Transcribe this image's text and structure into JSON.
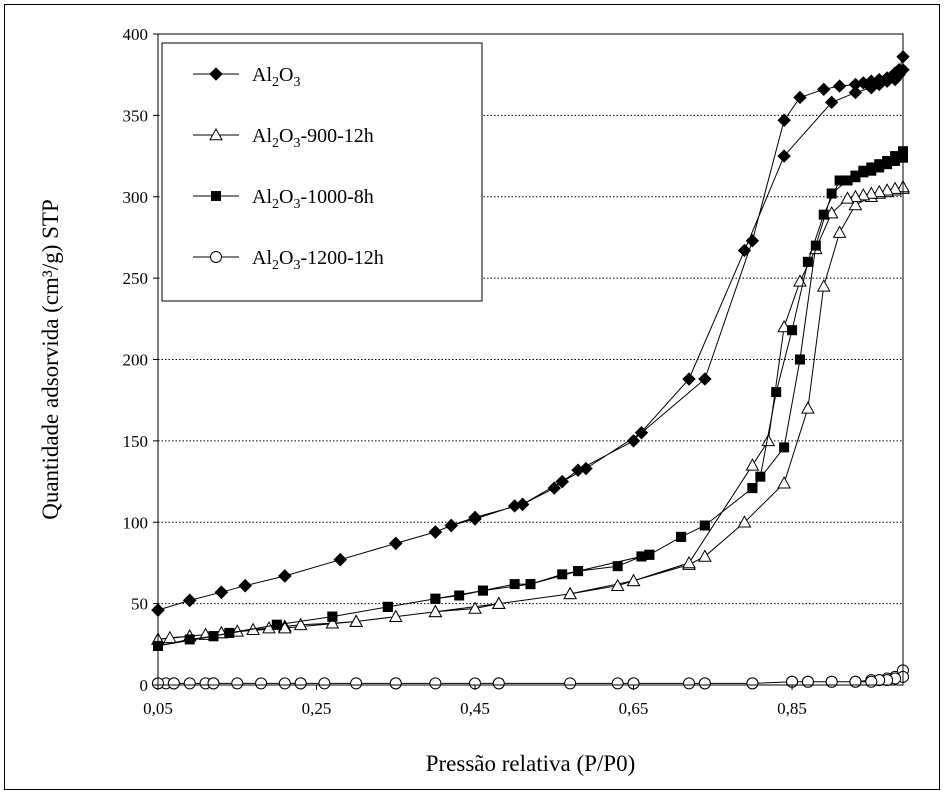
{
  "chart_data": {
    "type": "line",
    "xlabel": "Pressão relativa (P/P0)",
    "ylabel": "Quantidade adsorvida (cm³/g) STP",
    "xlim": [
      0.05,
      0.99
    ],
    "ylim": [
      0,
      400
    ],
    "xticks": [
      "0,05",
      "0,25",
      "0,45",
      "0,65",
      "0,85"
    ],
    "yticks": [
      "0",
      "50",
      "100",
      "150",
      "200",
      "250",
      "300",
      "350",
      "400"
    ],
    "grid": "horizontal dotted",
    "legend_position": "top-left",
    "series": [
      {
        "name": "Al2O3",
        "marker": "diamond-filled",
        "x": [
          0.05,
          0.09,
          0.13,
          0.16,
          0.21,
          0.28,
          0.35,
          0.4,
          0.42,
          0.45,
          0.5,
          0.51,
          0.55,
          0.56,
          0.58,
          0.65,
          0.72,
          0.79,
          0.84,
          0.9,
          0.93,
          0.95,
          0.96,
          0.97,
          0.98,
          0.985,
          0.99,
          0.99,
          0.985,
          0.98,
          0.97,
          0.96,
          0.95,
          0.94,
          0.93,
          0.91,
          0.89,
          0.86,
          0.84,
          0.8,
          0.74,
          0.66,
          0.59,
          0.56,
          0.51,
          0.45,
          0.42,
          0.4,
          0.35,
          0.28,
          0.21,
          0.16,
          0.13,
          0.09,
          0.05
        ],
        "y": [
          46,
          52,
          57,
          61,
          67,
          77,
          87,
          94,
          98,
          102,
          110,
          111,
          121,
          125,
          132,
          150,
          188,
          267,
          325,
          358,
          364,
          367,
          369,
          371,
          372,
          375,
          378,
          386,
          378,
          376,
          373,
          372,
          371,
          370,
          369,
          368,
          366,
          361,
          347,
          273,
          188,
          155,
          133,
          125,
          111,
          103,
          98,
          94,
          87,
          77,
          67,
          61,
          57,
          52,
          46
        ]
      },
      {
        "name": "Al2O3-900-12h",
        "marker": "triangle-open",
        "x": [
          0.05,
          0.065,
          0.09,
          0.11,
          0.13,
          0.15,
          0.17,
          0.19,
          0.21,
          0.23,
          0.27,
          0.3,
          0.35,
          0.4,
          0.45,
          0.48,
          0.57,
          0.63,
          0.65,
          0.72,
          0.74,
          0.79,
          0.84,
          0.87,
          0.89,
          0.91,
          0.93,
          0.95,
          0.96,
          0.97,
          0.98,
          0.99,
          0.99,
          0.98,
          0.97,
          0.96,
          0.95,
          0.94,
          0.93,
          0.92,
          0.9,
          0.88,
          0.86,
          0.84,
          0.82,
          0.8,
          0.72,
          0.65,
          0.57,
          0.48,
          0.4,
          0.3,
          0.21,
          0.13,
          0.09,
          0.05
        ],
        "y": [
          28,
          29,
          30,
          31,
          32,
          33,
          34,
          35,
          36,
          37,
          38,
          39,
          42,
          45,
          47,
          50,
          56,
          61,
          64,
          74,
          79,
          100,
          124,
          170,
          245,
          278,
          295,
          300,
          302,
          303,
          304,
          305,
          306,
          305,
          304,
          303,
          302,
          301,
          300,
          299,
          290,
          268,
          248,
          220,
          150,
          135,
          75,
          64,
          56,
          50,
          45,
          39,
          35,
          32,
          30,
          28
        ]
      },
      {
        "name": "Al2O3-1000-8h",
        "marker": "square-filled",
        "x": [
          0.05,
          0.09,
          0.12,
          0.14,
          0.2,
          0.27,
          0.34,
          0.4,
          0.43,
          0.46,
          0.5,
          0.52,
          0.56,
          0.58,
          0.63,
          0.66,
          0.67,
          0.71,
          0.74,
          0.8,
          0.84,
          0.86,
          0.88,
          0.9,
          0.92,
          0.93,
          0.94,
          0.95,
          0.96,
          0.97,
          0.98,
          0.99,
          0.99,
          0.98,
          0.97,
          0.96,
          0.95,
          0.94,
          0.93,
          0.92,
          0.91,
          0.89,
          0.87,
          0.85,
          0.83,
          0.81,
          0.8,
          0.74,
          0.71,
          0.67,
          0.66,
          0.58,
          0.52,
          0.46,
          0.4,
          0.34,
          0.27,
          0.2,
          0.12,
          0.05
        ],
        "y": [
          24,
          28,
          30,
          32,
          37,
          42,
          48,
          53,
          55,
          58,
          62,
          62,
          68,
          70,
          73,
          79,
          80,
          91,
          98,
          121,
          146,
          200,
          270,
          302,
          310,
          312,
          315,
          316,
          318,
          320,
          322,
          324,
          328,
          325,
          322,
          320,
          318,
          316,
          313,
          310,
          310,
          289,
          260,
          218,
          180,
          128,
          121,
          98,
          91,
          80,
          79,
          70,
          62,
          58,
          53,
          48,
          42,
          37,
          30,
          24
        ]
      },
      {
        "name": "Al2O3-1200-12h",
        "marker": "circle-open",
        "x": [
          0.05,
          0.06,
          0.07,
          0.09,
          0.11,
          0.12,
          0.15,
          0.18,
          0.21,
          0.23,
          0.26,
          0.3,
          0.35,
          0.4,
          0.45,
          0.48,
          0.57,
          0.63,
          0.65,
          0.72,
          0.74,
          0.8,
          0.85,
          0.87,
          0.9,
          0.93,
          0.95,
          0.96,
          0.97,
          0.98,
          0.99,
          0.99,
          0.98,
          0.97,
          0.96,
          0.95,
          0.93,
          0.9,
          0.87,
          0.85,
          0.8,
          0.74,
          0.65,
          0.48,
          0.35,
          0.23,
          0.12,
          0.07,
          0.05
        ],
        "y": [
          1,
          1,
          1,
          1,
          1,
          1,
          1,
          1,
          1,
          1,
          1,
          1,
          1,
          1,
          1,
          1,
          1,
          1,
          1,
          1,
          1,
          1,
          2,
          2,
          2,
          2,
          3,
          3,
          4,
          5,
          9,
          5,
          4,
          3,
          3,
          2,
          2,
          2,
          2,
          2,
          1,
          1,
          1,
          1,
          1,
          1,
          1,
          1,
          1
        ]
      }
    ]
  }
}
